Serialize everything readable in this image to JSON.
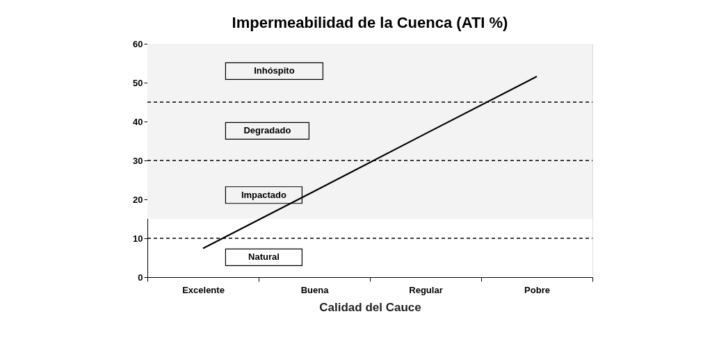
{
  "chart_data": {
    "type": "line",
    "title": "Impermeabilidad de la Cuenca (ATI %)",
    "xlabel": "Calidad del Cauce",
    "categories": [
      "Excelente",
      "Buena",
      "Regular",
      "Pobre"
    ],
    "series": [
      {
        "color": "#000000",
        "values": [
          7.4,
          22.1,
          36.9,
          51.6
        ]
      }
    ],
    "ylim": [
      0,
      60
    ],
    "yticks": [
      0,
      10,
      20,
      30,
      40,
      50,
      60
    ],
    "ref_lines": [
      {
        "axis": "y",
        "value": 10,
        "color": "#000000",
        "line_style": "dashed"
      },
      {
        "axis": "y",
        "value": 30,
        "color": "#000000",
        "line_style": "dashed"
      },
      {
        "axis": "y",
        "value": 45,
        "color": "#000000",
        "line_style": "dashed"
      }
    ],
    "bands": [
      {
        "axis": "y",
        "from": 15,
        "to": 60,
        "color": "#f3f3f3"
      }
    ],
    "annotations": [
      "Inhóspito",
      "Degradado",
      "Impactado",
      "Natural"
    ],
    "grid": false,
    "legend": false,
    "marker": "none",
    "line_style": "solid"
  }
}
